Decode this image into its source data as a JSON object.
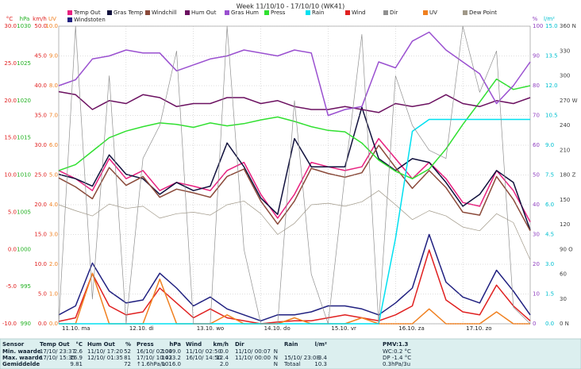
{
  "chart_data": {
    "type": "line",
    "title": "Week 11/10/10 - 17/10/10 (WK41)",
    "categories": [
      "11.10. ma",
      "12.10. di",
      "13.10. wo",
      "14.10. do",
      "15.10. vr",
      "16.10. za",
      "17.10. zo"
    ],
    "grid": true,
    "axes": [
      {
        "label": "°C",
        "color": "#e02020",
        "lim": [
          -10,
          30
        ],
        "ticks": [
          {
            "value": -10,
            "label": "-10.0"
          },
          {
            "value": -5,
            "label": "-5.0"
          },
          {
            "value": 0,
            "label": "0.0"
          },
          {
            "value": 5,
            "label": "5.0"
          },
          {
            "value": 10,
            "label": "10.0"
          },
          {
            "value": 15,
            "label": "15.0"
          },
          {
            "value": 20,
            "label": "20.0"
          },
          {
            "value": 25,
            "label": "25.0"
          },
          {
            "value": 30,
            "label": "30.0"
          }
        ],
        "series": [
          {
            "name": "Temp Out",
            "color": "#e8207f",
            "values": [
              10.6,
              9.5,
              7.9,
              12.2,
              9.5,
              10.6,
              7.9,
              9.0,
              8.5,
              7.9,
              10.6,
              11.7,
              7.4,
              4.2,
              7.4,
              11.7,
              11.1,
              10.6,
              11.1,
              14.9,
              12.2,
              9.5,
              11.7,
              9.5,
              6.3,
              5.8,
              10.6,
              7.9,
              3.7
            ]
          },
          {
            "name": "Gras Temp",
            "color": "#10103c",
            "values": [
              10.1,
              9.5,
              8.5,
              12.7,
              10.1,
              9.5,
              7.4,
              9.0,
              7.9,
              8.5,
              14.3,
              11.1,
              6.9,
              4.7,
              14.9,
              11.1,
              11.1,
              11.1,
              19.1,
              12.2,
              10.6,
              12.2,
              11.7,
              9.0,
              5.8,
              7.4,
              10.6,
              9.0,
              2.6
            ]
          },
          {
            "name": "Windchill",
            "color": "#8b4a3a",
            "values": [
              9.6,
              8.4,
              6.8,
              11.0,
              8.6,
              9.8,
              7.0,
              8.1,
              7.6,
              7.0,
              9.8,
              10.8,
              6.5,
              3.4,
              6.5,
              10.9,
              10.2,
              9.7,
              10.3,
              14.0,
              11.0,
              8.2,
              10.6,
              8.3,
              5.0,
              4.6,
              9.8,
              6.7,
              2.5
            ]
          },
          {
            "name": "Dew Point",
            "color": "#a09888",
            "values": [
              6.0,
              5.2,
              4.5,
              6.1,
              5.5,
              5.8,
              4.2,
              4.8,
              5.0,
              4.6,
              6.0,
              6.5,
              4.8,
              2.0,
              3.5,
              6.0,
              6.2,
              5.8,
              6.4,
              7.9,
              6.0,
              4.0,
              5.2,
              4.5,
              3.0,
              2.5,
              4.8,
              3.6,
              -1.4
            ]
          }
        ]
      },
      {
        "label": "hPa",
        "color": "#20b020",
        "lim": [
          990,
          1030
        ],
        "ticks": [
          990,
          995,
          1000,
          1005,
          1010,
          1015,
          1020,
          1025,
          1030
        ],
        "series": [
          {
            "name": "Press",
            "color": "#30e030",
            "values": [
              1010.6,
              1011.4,
              1013.2,
              1015.0,
              1015.9,
              1016.5,
              1017.0,
              1016.8,
              1016.4,
              1017.0,
              1016.6,
              1016.9,
              1017.4,
              1017.8,
              1017.2,
              1016.5,
              1016.0,
              1015.8,
              1014.3,
              1012.0,
              1010.5,
              1009.5,
              1010.8,
              1013.5,
              1016.8,
              1019.8,
              1022.9,
              1021.5,
              1022.0
            ]
          }
        ]
      },
      {
        "label": "km/h",
        "color": "#e02020",
        "lim": [
          0,
          50
        ],
        "ticks": [
          {
            "value": 0,
            "label": "0.0"
          },
          {
            "value": 5,
            "label": "5.0"
          },
          {
            "value": 10,
            "label": "10.0"
          },
          {
            "value": 15,
            "label": "15.0"
          },
          {
            "value": 20,
            "label": "20.0"
          },
          {
            "value": 25,
            "label": "25.0"
          },
          {
            "value": 30,
            "label": "30.0"
          },
          {
            "value": 35,
            "label": "35.0"
          },
          {
            "value": 40,
            "label": "40.0"
          },
          {
            "value": 45,
            "label": "45.0"
          },
          {
            "value": 50,
            "label": "50.0"
          }
        ],
        "series": [
          {
            "name": "Wind",
            "color": "#e02020",
            "values": [
              0.4,
              1.0,
              8.4,
              3.0,
              1.5,
              2.0,
              6.0,
              3.5,
              1.0,
              2.5,
              1.0,
              0.5,
              0.0,
              0.3,
              0.5,
              0.5,
              1.0,
              1.5,
              1.0,
              0.5,
              1.5,
              3.0,
              12.4,
              4.0,
              2.0,
              1.5,
              6.5,
              3.0,
              0.5
            ]
          },
          {
            "name": "Windstoten",
            "color": "#202080",
            "values": [
              1.5,
              3.0,
              10.2,
              5.5,
              3.5,
              4.0,
              8.5,
              6.0,
              3.0,
              4.5,
              2.5,
              1.5,
              0.5,
              1.5,
              1.5,
              2.0,
              3.0,
              3.0,
              2.5,
              1.5,
              3.5,
              6.0,
              15.0,
              7.0,
              4.5,
              3.5,
              9.0,
              5.5,
              1.5
            ]
          }
        ]
      },
      {
        "label": "UV",
        "color": "#f08020",
        "lim": [
          0,
          10
        ],
        "ticks": [
          {
            "value": 0,
            "label": "0.0"
          },
          {
            "value": 1,
            "label": "1.0"
          },
          {
            "value": 2,
            "label": "2.0"
          },
          {
            "value": 3,
            "label": "3.0"
          },
          {
            "value": 4,
            "label": "4.0"
          },
          {
            "value": 5,
            "label": "5.0"
          },
          {
            "value": 6,
            "label": "6.0"
          },
          {
            "value": 7,
            "label": "7.0"
          },
          {
            "value": 8,
            "label": "8.0"
          },
          {
            "value": 9,
            "label": "9.0"
          },
          {
            "value": 10,
            "label": "10.0"
          }
        ],
        "series": [
          {
            "name": "UV",
            "color": "#f08020",
            "values": [
              0,
              0,
              1.7,
              0,
              0,
              0,
              1.5,
              0,
              0,
              0,
              0.3,
              0,
              0,
              0,
              0.2,
              0,
              0,
              0,
              0.2,
              0,
              0,
              0,
              0.5,
              0,
              0,
              0,
              0.4,
              0,
              0
            ]
          }
        ]
      },
      {
        "label": "%",
        "color": "#9040c0",
        "lim": [
          0,
          100
        ],
        "ticks": [
          0,
          10,
          20,
          30,
          40,
          50,
          60,
          70,
          80,
          90,
          100
        ],
        "series": [
          {
            "name": "Hum Out",
            "color": "#6b1060",
            "values": [
              78,
              77,
              72,
              75,
              74,
              77,
              76,
              73,
              74,
              74,
              76,
              76,
              74,
              75,
              73,
              72,
              72,
              73,
              72,
              71,
              74,
              73,
              74,
              77,
              74,
              73,
              75,
              74,
              76
            ]
          },
          {
            "name": "Gras Hum",
            "color": "#9a50d0",
            "values": [
              80,
              82,
              89,
              90,
              92,
              91,
              91,
              85,
              87,
              89,
              90,
              92,
              91,
              90,
              92,
              91,
              70,
              72,
              73,
              88,
              86,
              95,
              98,
              92,
              88,
              84,
              74,
              80,
              88
            ]
          }
        ]
      },
      {
        "label": "l/m²",
        "color": "#00c0d0",
        "lim": [
          0,
          15
        ],
        "ticks": [
          {
            "value": 0,
            "label": "0.0"
          },
          {
            "value": 1.5,
            "label": "1.5"
          },
          {
            "value": 3,
            "label": "3.0"
          },
          {
            "value": 4.5,
            "label": "4.5"
          },
          {
            "value": 6,
            "label": "6.0"
          },
          {
            "value": 7.5,
            "label": "7.5"
          },
          {
            "value": 9,
            "label": "9.0"
          },
          {
            "value": 10.5,
            "label": "10.5"
          },
          {
            "value": 12,
            "label": "12.0"
          },
          {
            "value": 13.5,
            "label": "13.5"
          },
          {
            "value": 15,
            "label": "15.0"
          }
        ],
        "series": [
          {
            "name": "Rain",
            "color": "#00e0f0",
            "values": [
              0,
              0,
              0,
              0,
              0,
              0,
              0,
              0,
              0,
              0,
              0,
              0,
              0,
              0,
              0,
              0,
              0,
              0,
              0,
              0,
              4.3,
              9.7,
              10.3,
              10.3,
              10.3,
              10.3,
              10.3,
              10.3,
              10.3
            ]
          }
        ]
      },
      {
        "color": "#404040",
        "lim": [
          0,
          360
        ],
        "ticks": [
          {
            "value": 0,
            "label": "0 N"
          },
          30,
          60,
          {
            "value": 90,
            "label": "90 O"
          },
          120,
          150,
          {
            "value": 180,
            "label": "180 Z"
          },
          210,
          240,
          {
            "value": 270,
            "label": "270 W"
          },
          300,
          330,
          {
            "value": 360,
            "label": "360 N"
          }
        ],
        "series": [
          {
            "name": "Dir",
            "color": "#909090",
            "values": [
              0,
              360,
              30,
              300,
              0,
              200,
              240,
              330,
              0,
              0,
              360,
              90,
              0,
              0,
              270,
              60,
              0,
              180,
              350,
              0,
              300,
              240,
              210,
              200,
              360,
              280,
              330,
              20,
              0
            ]
          }
        ]
      }
    ]
  },
  "stats": {
    "headers": {
      "sensor": "Sensor",
      "temp": "Temp Out",
      "temp_unit": "°C",
      "hum": "Hum Out",
      "hum_unit": "%",
      "press": "Press",
      "press_unit": "hPa",
      "wind": "Wind",
      "wind_unit": "km/h",
      "dir": "Dir",
      "rain": "Rain",
      "rain_unit": "l/m²",
      "pmv": "PMV:1.3"
    },
    "rows": [
      {
        "label": "Min. waarde",
        "temp_time": "17/10/ 23:37",
        "temp": "2.6",
        "hum_time": "11/10/ 17:20",
        "hum": "52",
        "press_time": "16/10/ 02:04",
        "press": "1009.0",
        "wind_time": "11/10/ 02:50",
        "wind": "0.0",
        "dir_time": "11/10/ 00:07",
        "dir": "N",
        "extra": "WC:0.2 °C"
      },
      {
        "label": "Max. waarde",
        "temp_time": "17/10/ 15:35",
        "temp": "16.9",
        "hum_time": "12/10/ 01:35",
        "hum": "81",
        "press_time": "17/10/ 10:43",
        "press": "1023.2",
        "wind_time": "16/10/ 14:50",
        "wind": "12.4",
        "dir_time": "11/10/ 00:00",
        "dir": "N",
        "rain_time": "15/10/ 23:08",
        "rain": "3.4",
        "extra": "DP -1.4 °C"
      },
      {
        "label": "Gemiddelde",
        "temp": "9.81",
        "hum": "72",
        "press_time": "↑1.6hPa/u",
        "press": "1016.0",
        "wind": "2.0",
        "dir": "N",
        "rain_time": "Totaal",
        "rain": "10.3",
        "extra": "0.3hPa/3u"
      }
    ]
  }
}
